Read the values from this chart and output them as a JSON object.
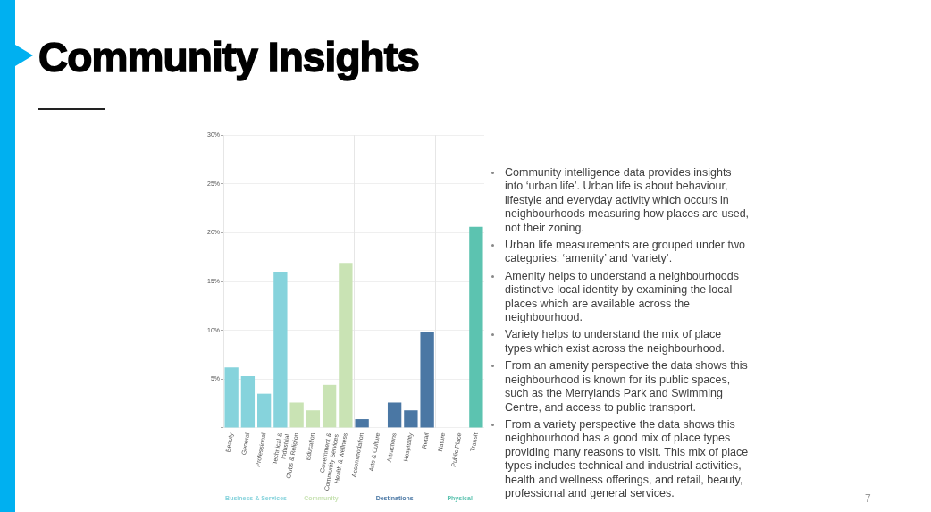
{
  "chart_data": {
    "type": "bar",
    "title": "Community Insights",
    "categories": [
      "Beauty",
      "General",
      "Professional",
      "Technical & Industrial",
      "Clubs & Religion",
      "Education",
      "Government & Community Services",
      "Health & Wellness",
      "Accommodation",
      "Arts & Culture",
      "Attractions",
      "Hospitality",
      "Retail",
      "Nature",
      "Public Place",
      "Transit"
    ],
    "series": [
      {
        "name": "Business & Services",
        "color": "#86d3dc",
        "values": [
          6.2,
          5.3,
          3.5,
          16.0,
          null,
          null,
          null,
          null,
          null,
          null,
          null,
          null,
          null,
          null,
          null,
          null
        ]
      },
      {
        "name": "Community",
        "color": "#c9e3b4",
        "values": [
          null,
          null,
          null,
          null,
          2.6,
          1.8,
          4.4,
          16.9,
          null,
          null,
          null,
          null,
          null,
          null,
          null,
          null
        ]
      },
      {
        "name": "Destinations",
        "color": "#4a77a4",
        "values": [
          null,
          null,
          null,
          null,
          null,
          null,
          null,
          null,
          0.9,
          0,
          2.6,
          1.8,
          9.8,
          null,
          null,
          null
        ]
      },
      {
        "name": "Physical",
        "color": "#5cc3b0",
        "values": [
          null,
          null,
          null,
          null,
          null,
          null,
          null,
          null,
          null,
          null,
          null,
          null,
          null,
          0,
          0,
          20.6
        ]
      }
    ],
    "ylim": [
      0,
      30
    ],
    "yticks": [
      {
        "value": 0,
        "label": null
      },
      {
        "value": 5,
        "label": "5%"
      },
      {
        "value": 10,
        "label": "10%"
      },
      {
        "value": 15,
        "label": "15%"
      },
      {
        "value": 20,
        "label": "20%"
      },
      {
        "value": 25,
        "label": "25%"
      },
      {
        "value": 30,
        "label": "30%"
      }
    ],
    "grid": "y",
    "annotations": [
      "Community intelligence data provides insights into ‘urban life’. Urban life is about behaviour, lifestyle and everyday activity which occurs in neighbourhoods measuring how places are used, not their zoning.",
      "Urban life measurements are grouped under two categories: ‘amenity’ and ‘variety’.",
      "Amenity helps to understand a neighbourhoods distinctive local identity by examining the local places which are available across the neighbourhood.",
      "Variety helps to understand the mix of place types which exist across the neighbourhood.",
      "From an amenity perspective the data shows this neighbourhood is known for its public spaces, such as the Merrylands Park and Swimming Centre, and access to public transport.",
      "From a variety perspective the data shows this neighbourhood has a good mix of place types providing many reasons to visit. This mix of place types includes technical and industrial activities, health and wellness offerings, and retail, beauty, professional and general services.",
      "7"
    ]
  }
}
